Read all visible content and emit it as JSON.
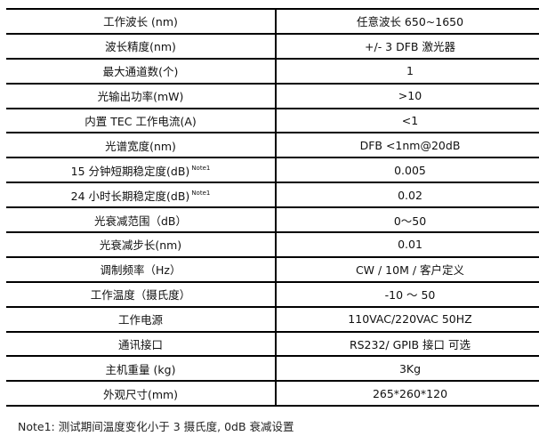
{
  "rows": [
    {
      "label": "工作波长 (nm)",
      "value": "任意波长  650~1650"
    },
    {
      "label": "波长精度(nm)",
      "value": "+/- 3 DFB 激光器"
    },
    {
      "label": "最大通道数(个)",
      "value": "1"
    },
    {
      "label": "光输出功率(mW)",
      "value": ">10"
    },
    {
      "label": "内置 TEC 工作电流(A)",
      "value": "<1"
    },
    {
      "label": "光谱宽度(nm)",
      "value": "DFB <1nm@20dB"
    },
    {
      "label": "15 分钟短期稳定度(dB)",
      "sup": "Note1",
      "value": "0.005"
    },
    {
      "label": "24 小时长期稳定度(dB)",
      "sup": "Note1",
      "value": "0.02"
    },
    {
      "label": "光衰减范围（dB）",
      "value": "0～50"
    },
    {
      "label": "光衰减步长(nm)",
      "value": "0.01"
    },
    {
      "label": "调制频率（Hz）",
      "value": "CW / 10M / 客户定义"
    },
    {
      "label": "工作温度（摄氏度）",
      "value": "-10 ～ 50"
    },
    {
      "label": "工作电源",
      "value": "110VAC/220VAC 50HZ"
    },
    {
      "label": "通讯接口",
      "value": "RS232/ GPIB 接口  可选"
    },
    {
      "label": "主机重量 (kg)",
      "value": "3Kg"
    },
    {
      "label": "外观尺寸(mm)",
      "value": "265*260*120"
    }
  ],
  "note": "Note1: 测试期间温度变化小于 3 摄氏度, 0dB 衰减设置"
}
